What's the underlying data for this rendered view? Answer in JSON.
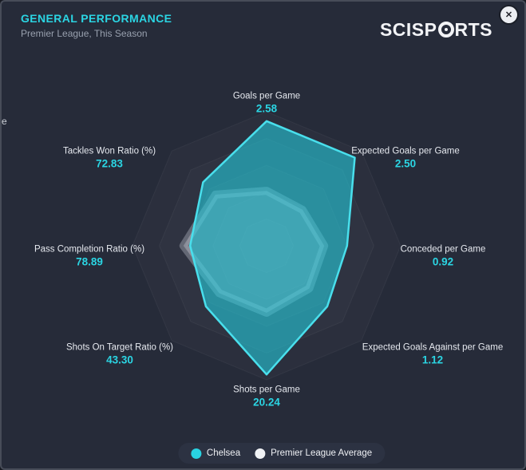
{
  "header": {
    "title": "GENERAL PERFORMANCE",
    "subtitle": "Premier League, This Season",
    "logo_pre": "SCISP",
    "logo_post": "RTS",
    "close_glyph": "✕"
  },
  "edge_fragment": "e",
  "colors": {
    "accent": "#2bd5e3",
    "chelsea": "#29d3e2",
    "average": "#f0f2f5",
    "background": "#262b39"
  },
  "legend": {
    "items": [
      {
        "label": "Chelsea",
        "color": "#29d3e2"
      },
      {
        "label": "Premier League Average",
        "color": "#f0f2f5"
      }
    ]
  },
  "chart_data": {
    "type": "radar",
    "title": "GENERAL PERFORMANCE",
    "subtitle": "Premier League, This Season",
    "axes": [
      "Goals per Game",
      "Expected Goals per Game",
      "Conceded per Game",
      "Expected Goals Against per Game",
      "Shots per Game",
      "Shots On Target Ratio (%)",
      "Pass Completion Ratio (%)",
      "Tackles Won Ratio (%)"
    ],
    "rings": [
      1,
      0.8,
      0.6,
      0.4,
      0.2
    ],
    "legend_position": "bottom",
    "series": [
      {
        "name": "Chelsea",
        "color": "#29d3e2",
        "values": [
          2.58,
          2.5,
          0.92,
          1.12,
          20.24,
          43.3,
          78.89,
          72.83
        ],
        "display": [
          "2.58",
          "2.50",
          "0.92",
          "1.12",
          "20.24",
          "43.30",
          "78.89",
          "72.83"
        ],
        "radius_fraction": [
          0.93,
          0.93,
          0.6,
          0.64,
          0.96,
          0.64,
          0.57,
          0.67
        ]
      },
      {
        "name": "Premier League Average",
        "color": "#f0f2f5",
        "radius_fraction": [
          0.41,
          0.38,
          0.43,
          0.45,
          0.5,
          0.5,
          0.62,
          0.54
        ]
      }
    ]
  }
}
